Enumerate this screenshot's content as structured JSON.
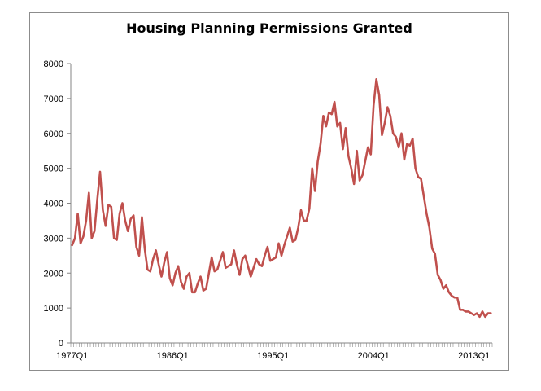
{
  "chart_data": {
    "type": "line",
    "title": "Housing Planning Permissions Granted",
    "xlabel": "",
    "ylabel": "",
    "ylim": [
      0,
      8000
    ],
    "yticks": [
      0,
      1000,
      2000,
      3000,
      4000,
      5000,
      6000,
      7000,
      8000
    ],
    "xtick_labels": [
      "1977Q1",
      "1986Q1",
      "1995Q1",
      "2004Q1",
      "2013Q1"
    ],
    "x_start": "1977Q1",
    "line_color": "#c0504d",
    "grid": false,
    "legend": "none",
    "series": [
      {
        "values": [
          2800,
          3000,
          3700,
          2850,
          3050,
          3500,
          4300,
          3000,
          3200,
          4100,
          4900,
          3800,
          3350,
          3950,
          3900,
          3000,
          2950,
          3700,
          4000,
          3500,
          3200,
          3550,
          3650,
          2750,
          2500,
          3600,
          2700,
          2100,
          2050,
          2400,
          2650,
          2250,
          1900,
          2300,
          2600,
          1850,
          1650,
          2000,
          2200,
          1750,
          1550,
          1900,
          2000,
          1450,
          1450,
          1700,
          1900,
          1500,
          1550,
          2000,
          2450,
          2050,
          2100,
          2350,
          2600,
          2150,
          2200,
          2250,
          2650,
          2250,
          1950,
          2400,
          2500,
          2200,
          1900,
          2150,
          2400,
          2250,
          2200,
          2500,
          2750,
          2350,
          2400,
          2450,
          2850,
          2500,
          2800,
          3050,
          3300,
          2900,
          2950,
          3300,
          3800,
          3500,
          3500,
          3850,
          5000,
          4350,
          5200,
          5700,
          6500,
          6200,
          6600,
          6550,
          6900,
          6200,
          6300,
          5550,
          6150,
          5350,
          5000,
          4550,
          5500,
          4650,
          4800,
          5200,
          5600,
          5400,
          6800,
          7550,
          7100,
          5950,
          6300,
          6750,
          6500,
          6000,
          5900,
          5600,
          6000,
          5250,
          5700,
          5650,
          5850,
          5000,
          4750,
          4700,
          4200,
          3700,
          3300,
          2700,
          2550,
          1950,
          1800,
          1550,
          1650,
          1450,
          1350,
          1300,
          1300,
          950,
          950,
          900,
          900,
          850,
          800,
          850,
          750,
          900,
          750,
          850,
          850
        ]
      }
    ]
  }
}
